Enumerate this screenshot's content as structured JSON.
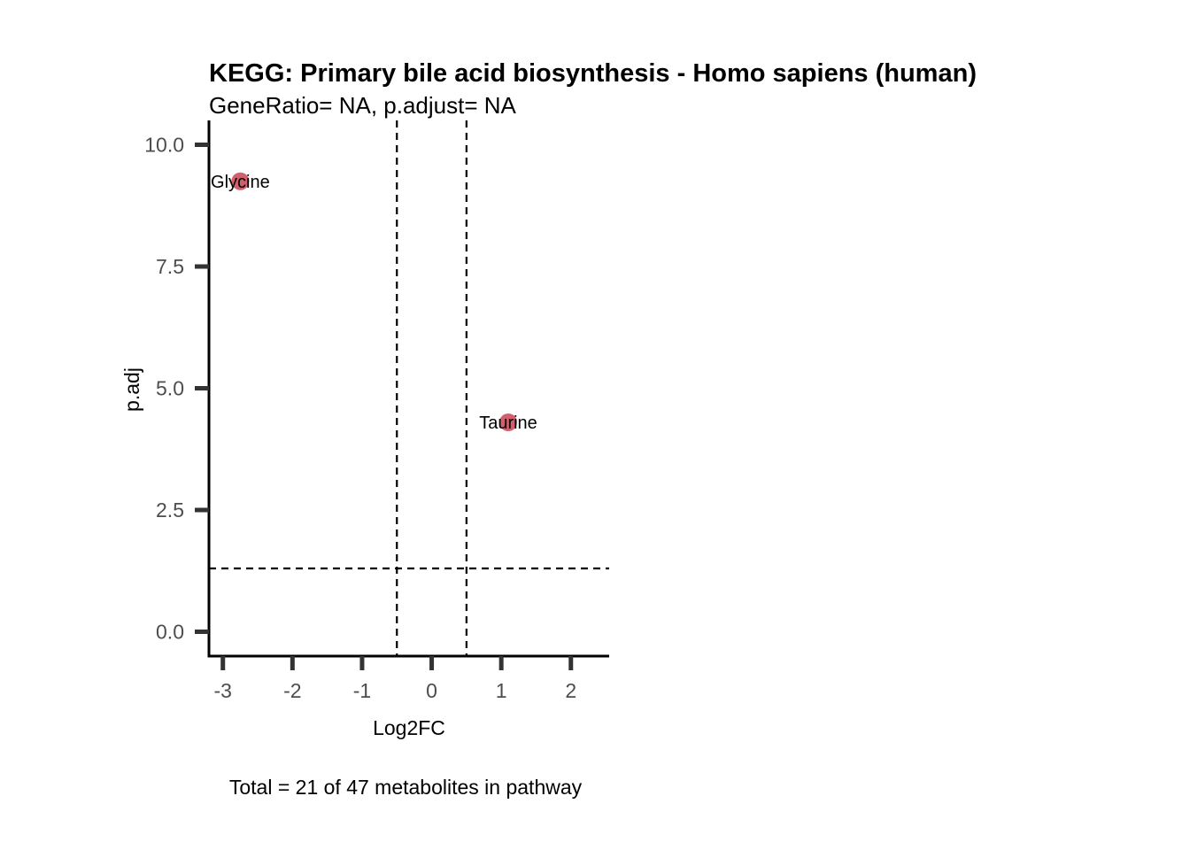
{
  "chart_data": {
    "type": "scatter",
    "title": "KEGG: Primary bile acid biosynthesis - Homo sapiens (human)",
    "subtitle": "GeneRatio= NA, p.adjust= NA",
    "xlabel": "Log2FC",
    "ylabel": "p.adj",
    "caption": "Total = 21 of 47 metabolites in pathway",
    "xlim": [
      -3.2,
      2.55
    ],
    "ylim": [
      -0.5,
      10.5
    ],
    "x_ticks": [
      {
        "value": -3,
        "label": "-3"
      },
      {
        "value": -2,
        "label": "-2"
      },
      {
        "value": -1,
        "label": "-1"
      },
      {
        "value": 0,
        "label": "0"
      },
      {
        "value": 1,
        "label": "1"
      },
      {
        "value": 2,
        "label": "2"
      }
    ],
    "y_ticks": [
      {
        "value": 0,
        "label": "0.0"
      },
      {
        "value": 2.5,
        "label": "2.5"
      },
      {
        "value": 5,
        "label": "5.0"
      },
      {
        "value": 7.5,
        "label": "7.5"
      },
      {
        "value": 10,
        "label": "10.0"
      }
    ],
    "points": [
      {
        "label": "Glycine",
        "x": -2.75,
        "y": 9.25
      },
      {
        "label": "Taurine",
        "x": 1.1,
        "y": 4.3
      }
    ],
    "threshold_lines": {
      "vertical_x": [
        -0.5,
        0.5
      ],
      "horizontal_y": 1.3
    },
    "point_color": "#d1606e",
    "grid": false,
    "legend": "none"
  }
}
